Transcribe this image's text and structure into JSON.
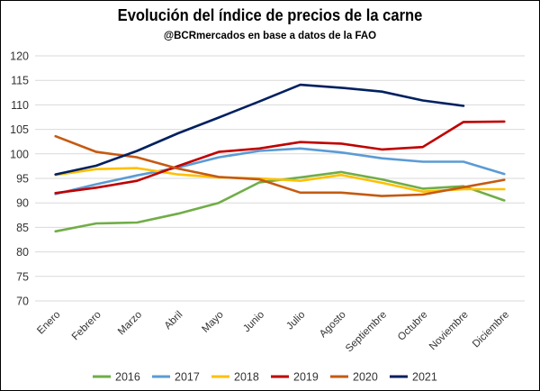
{
  "chart_data": {
    "type": "line",
    "title": "Evolución del índice de precios de la carne",
    "subtitle": "@BCRmercados  en base a datos de la FAO",
    "xlabel": "",
    "ylabel": "",
    "ylim": [
      70,
      120
    ],
    "yticks": [
      70,
      75,
      80,
      85,
      90,
      95,
      100,
      105,
      110,
      115,
      120
    ],
    "grid": "horizontal",
    "legend_position": "bottom",
    "categories": [
      "Enero",
      "Febrero",
      "Marzo",
      "Abril",
      "Mayo",
      "Junio",
      "Julio",
      "Agosto",
      "Septiembre",
      "Octubre",
      "Noviembre",
      "Diciembre"
    ],
    "series": [
      {
        "name": "2016",
        "color": "#70ad47",
        "values": [
          84.2,
          85.8,
          86.0,
          87.8,
          90.0,
          94.2,
          95.2,
          96.3,
          94.8,
          92.9,
          93.4,
          90.5
        ]
      },
      {
        "name": "2017",
        "color": "#5b9bd5",
        "values": [
          91.8,
          93.8,
          95.6,
          97.2,
          99.3,
          100.6,
          101.1,
          100.3,
          99.1,
          98.4,
          98.4,
          95.9
        ]
      },
      {
        "name": "2018",
        "color": "#ffc000",
        "values": [
          95.7,
          96.9,
          97.1,
          95.8,
          95.2,
          95.0,
          94.5,
          95.7,
          94.1,
          92.3,
          92.8,
          92.8
        ]
      },
      {
        "name": "2019",
        "color": "#c00000",
        "values": [
          92.0,
          93.1,
          94.5,
          97.5,
          100.4,
          101.1,
          102.4,
          102.1,
          100.9,
          101.4,
          106.5,
          106.6
        ]
      },
      {
        "name": "2020",
        "color": "#c55a11",
        "values": [
          103.6,
          100.4,
          99.3,
          97.0,
          95.3,
          94.8,
          92.1,
          92.1,
          91.4,
          91.7,
          93.2,
          94.7
        ]
      },
      {
        "name": "2021",
        "color": "#002060",
        "values": [
          95.8,
          97.6,
          100.6,
          104.2,
          107.4,
          110.7,
          114.1,
          113.5,
          112.7,
          110.9,
          109.8,
          null
        ]
      }
    ]
  }
}
